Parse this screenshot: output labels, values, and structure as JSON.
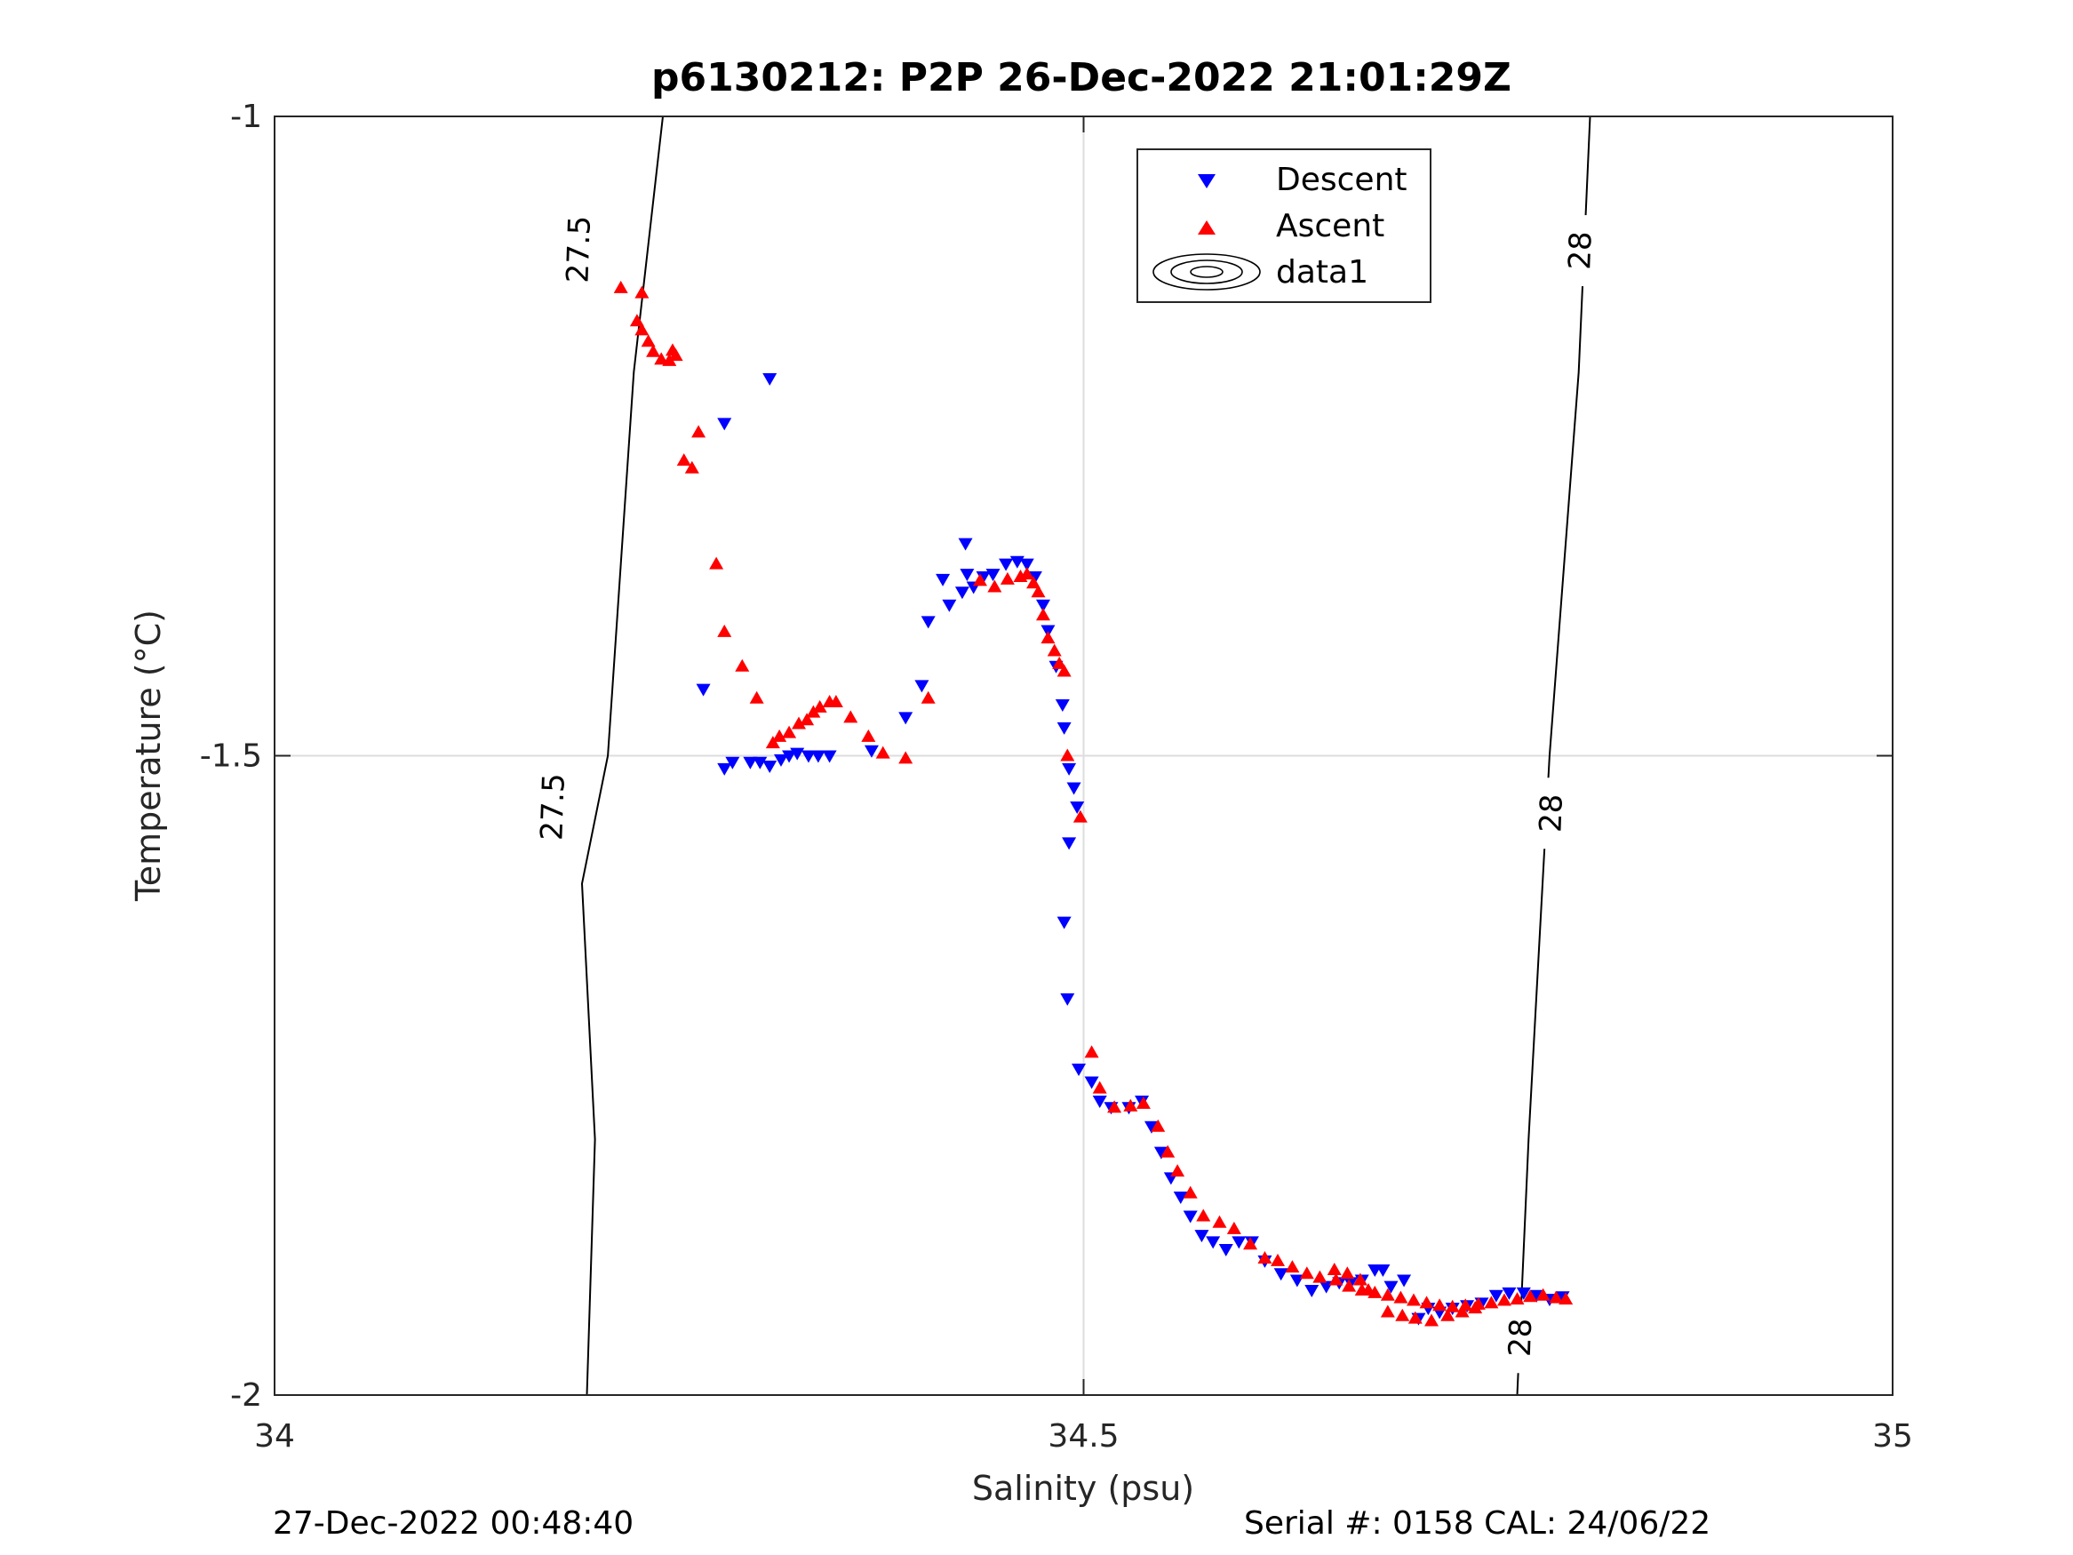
{
  "chart_data": {
    "type": "scatter",
    "title": "p6130212: P2P 26-Dec-2022 21:01:29Z",
    "xlabel": "Salinity (psu)",
    "ylabel": "Temperature (°C)",
    "xlim": [
      34,
      35
    ],
    "ylim": [
      -2,
      -1
    ],
    "x_ticks": [
      "34",
      "34.5",
      "35"
    ],
    "y_ticks": [
      "-1",
      "-1.5",
      "-2"
    ],
    "grid": true,
    "legend_position": "top-center",
    "legend": [
      "Descent",
      "Ascent",
      "data1"
    ],
    "footer_left": "27-Dec-2022 00:48:40",
    "footer_right": "Serial #: 0158  CAL: 24/06/22",
    "colors": {
      "descent": "#0000ff",
      "ascent": "#ff0000",
      "contour": "#000000",
      "grid": "#dddddd",
      "axis": "#262626"
    },
    "contours": [
      {
        "level": "27.5",
        "points": [
          [
            34.193,
            -2.0
          ],
          [
            34.198,
            -1.8
          ],
          [
            34.206,
            -1.5
          ],
          [
            34.222,
            -1.2
          ],
          [
            34.19,
            -1.6
          ],
          [
            34.24,
            -1.0
          ]
        ],
        "labels": [
          {
            "text": "27.5",
            "x": 34.173,
            "y": -1.54
          },
          {
            "text": "27.5",
            "x": 34.189,
            "y": -1.104
          }
        ]
      },
      {
        "level": "28",
        "points": [
          [
            34.768,
            -2.0
          ],
          [
            34.775,
            -1.8
          ],
          [
            34.788,
            -1.5
          ],
          [
            34.806,
            -1.2
          ],
          [
            34.813,
            -1.0
          ]
        ],
        "labels": [
          {
            "text": "28",
            "x": 34.771,
            "y": -1.955
          },
          {
            "text": "28",
            "x": 34.79,
            "y": -1.545
          },
          {
            "text": "28",
            "x": 34.808,
            "y": -1.105
          }
        ]
      }
    ],
    "series": [
      {
        "name": "Descent",
        "marker": "triangle-down",
        "points": [
          [
            34.306,
            -1.205
          ],
          [
            34.278,
            -1.24
          ],
          [
            34.265,
            -1.448
          ],
          [
            34.278,
            -1.51
          ],
          [
            34.283,
            -1.505
          ],
          [
            34.294,
            -1.505
          ],
          [
            34.3,
            -1.505
          ],
          [
            34.306,
            -1.508
          ],
          [
            34.313,
            -1.503
          ],
          [
            34.318,
            -1.5
          ],
          [
            34.323,
            -1.498
          ],
          [
            34.33,
            -1.5
          ],
          [
            34.336,
            -1.5
          ],
          [
            34.343,
            -1.5
          ],
          [
            34.369,
            -1.496
          ],
          [
            34.39,
            -1.47
          ],
          [
            34.4,
            -1.445
          ],
          [
            34.404,
            -1.395
          ],
          [
            34.417,
            -1.382
          ],
          [
            34.413,
            -1.362
          ],
          [
            34.425,
            -1.372
          ],
          [
            34.428,
            -1.358
          ],
          [
            34.427,
            -1.334
          ],
          [
            34.432,
            -1.368
          ],
          [
            34.438,
            -1.36
          ],
          [
            34.444,
            -1.358
          ],
          [
            34.452,
            -1.35
          ],
          [
            34.459,
            -1.348
          ],
          [
            34.465,
            -1.35
          ],
          [
            34.47,
            -1.36
          ],
          [
            34.475,
            -1.382
          ],
          [
            34.478,
            -1.402
          ],
          [
            34.483,
            -1.43
          ],
          [
            34.487,
            -1.46
          ],
          [
            34.488,
            -1.478
          ],
          [
            34.491,
            -1.51
          ],
          [
            34.494,
            -1.525
          ],
          [
            34.496,
            -1.54
          ],
          [
            34.491,
            -1.568
          ],
          [
            34.488,
            -1.63
          ],
          [
            34.49,
            -1.69
          ],
          [
            34.497,
            -1.745
          ],
          [
            34.505,
            -1.755
          ],
          [
            34.51,
            -1.77
          ],
          [
            34.517,
            -1.775
          ],
          [
            34.528,
            -1.775
          ],
          [
            34.536,
            -1.77
          ],
          [
            34.542,
            -1.79
          ],
          [
            34.548,
            -1.81
          ],
          [
            34.554,
            -1.83
          ],
          [
            34.56,
            -1.845
          ],
          [
            34.566,
            -1.86
          ],
          [
            34.573,
            -1.875
          ],
          [
            34.58,
            -1.88
          ],
          [
            34.588,
            -1.886
          ],
          [
            34.596,
            -1.88
          ],
          [
            34.604,
            -1.88
          ],
          [
            34.612,
            -1.895
          ],
          [
            34.622,
            -1.905
          ],
          [
            34.632,
            -1.91
          ],
          [
            34.641,
            -1.918
          ],
          [
            34.65,
            -1.915
          ],
          [
            34.658,
            -1.912
          ],
          [
            34.665,
            -1.912
          ],
          [
            34.672,
            -1.91
          ],
          [
            34.68,
            -1.902
          ],
          [
            34.685,
            -1.902
          ],
          [
            34.69,
            -1.915
          ],
          [
            34.698,
            -1.91
          ],
          [
            34.707,
            -1.94
          ],
          [
            34.713,
            -1.932
          ],
          [
            34.72,
            -1.935
          ],
          [
            34.728,
            -1.932
          ],
          [
            34.737,
            -1.93
          ],
          [
            34.746,
            -1.928
          ],
          [
            34.755,
            -1.922
          ],
          [
            34.763,
            -1.92
          ],
          [
            34.772,
            -1.92
          ],
          [
            34.78,
            -1.922
          ],
          [
            34.788,
            -1.925
          ],
          [
            34.796,
            -1.923
          ]
        ]
      },
      {
        "name": "Ascent",
        "marker": "triangle-up",
        "points": [
          [
            34.214,
            -1.134
          ],
          [
            34.227,
            -1.138
          ],
          [
            34.224,
            -1.16
          ],
          [
            34.227,
            -1.167
          ],
          [
            34.231,
            -1.176
          ],
          [
            34.234,
            -1.184
          ],
          [
            34.239,
            -1.19
          ],
          [
            34.244,
            -1.191
          ],
          [
            34.246,
            -1.183
          ],
          [
            34.248,
            -1.187
          ],
          [
            34.262,
            -1.247
          ],
          [
            34.253,
            -1.269
          ],
          [
            34.258,
            -1.275
          ],
          [
            34.273,
            -1.35
          ],
          [
            34.278,
            -1.403
          ],
          [
            34.289,
            -1.43
          ],
          [
            34.298,
            -1.455
          ],
          [
            34.308,
            -1.49
          ],
          [
            34.312,
            -1.485
          ],
          [
            34.318,
            -1.482
          ],
          [
            34.324,
            -1.475
          ],
          [
            34.329,
            -1.472
          ],
          [
            34.333,
            -1.466
          ],
          [
            34.337,
            -1.462
          ],
          [
            34.343,
            -1.458
          ],
          [
            34.347,
            -1.458
          ],
          [
            34.356,
            -1.47
          ],
          [
            34.367,
            -1.485
          ],
          [
            34.376,
            -1.498
          ],
          [
            34.39,
            -1.502
          ],
          [
            34.404,
            -1.455
          ],
          [
            34.436,
            -1.363
          ],
          [
            34.445,
            -1.368
          ],
          [
            34.453,
            -1.362
          ],
          [
            34.461,
            -1.36
          ],
          [
            34.465,
            -1.358
          ],
          [
            34.469,
            -1.365
          ],
          [
            34.472,
            -1.372
          ],
          [
            34.475,
            -1.39
          ],
          [
            34.478,
            -1.408
          ],
          [
            34.482,
            -1.418
          ],
          [
            34.485,
            -1.428
          ],
          [
            34.488,
            -1.434
          ],
          [
            34.49,
            -1.5
          ],
          [
            34.498,
            -1.548
          ],
          [
            34.505,
            -1.732
          ],
          [
            34.51,
            -1.76
          ],
          [
            34.519,
            -1.775
          ],
          [
            34.529,
            -1.774
          ],
          [
            34.537,
            -1.772
          ],
          [
            34.546,
            -1.79
          ],
          [
            34.552,
            -1.81
          ],
          [
            34.558,
            -1.825
          ],
          [
            34.566,
            -1.842
          ],
          [
            34.574,
            -1.86
          ],
          [
            34.584,
            -1.865
          ],
          [
            34.593,
            -1.87
          ],
          [
            34.603,
            -1.882
          ],
          [
            34.612,
            -1.893
          ],
          [
            34.62,
            -1.895
          ],
          [
            34.629,
            -1.9
          ],
          [
            34.638,
            -1.905
          ],
          [
            34.646,
            -1.908
          ],
          [
            34.656,
            -1.91
          ],
          [
            34.664,
            -1.915
          ],
          [
            34.672,
            -1.918
          ],
          [
            34.68,
            -1.92
          ],
          [
            34.688,
            -1.922
          ],
          [
            34.696,
            -1.924
          ],
          [
            34.704,
            -1.926
          ],
          [
            34.712,
            -1.928
          ],
          [
            34.72,
            -1.93
          ],
          [
            34.728,
            -1.931
          ],
          [
            34.736,
            -1.93
          ],
          [
            34.744,
            -1.929
          ],
          [
            34.752,
            -1.928
          ],
          [
            34.76,
            -1.926
          ],
          [
            34.768,
            -1.925
          ],
          [
            34.776,
            -1.923
          ],
          [
            34.784,
            -1.922
          ],
          [
            34.792,
            -1.924
          ],
          [
            34.798,
            -1.925
          ],
          [
            34.655,
            -1.902
          ],
          [
            34.663,
            -1.905
          ],
          [
            34.671,
            -1.91
          ],
          [
            34.676,
            -1.918
          ],
          [
            34.688,
            -1.935
          ],
          [
            34.697,
            -1.938
          ],
          [
            34.705,
            -1.94
          ],
          [
            34.715,
            -1.942
          ],
          [
            34.725,
            -1.938
          ],
          [
            34.734,
            -1.935
          ],
          [
            34.742,
            -1.932
          ]
        ]
      }
    ]
  }
}
